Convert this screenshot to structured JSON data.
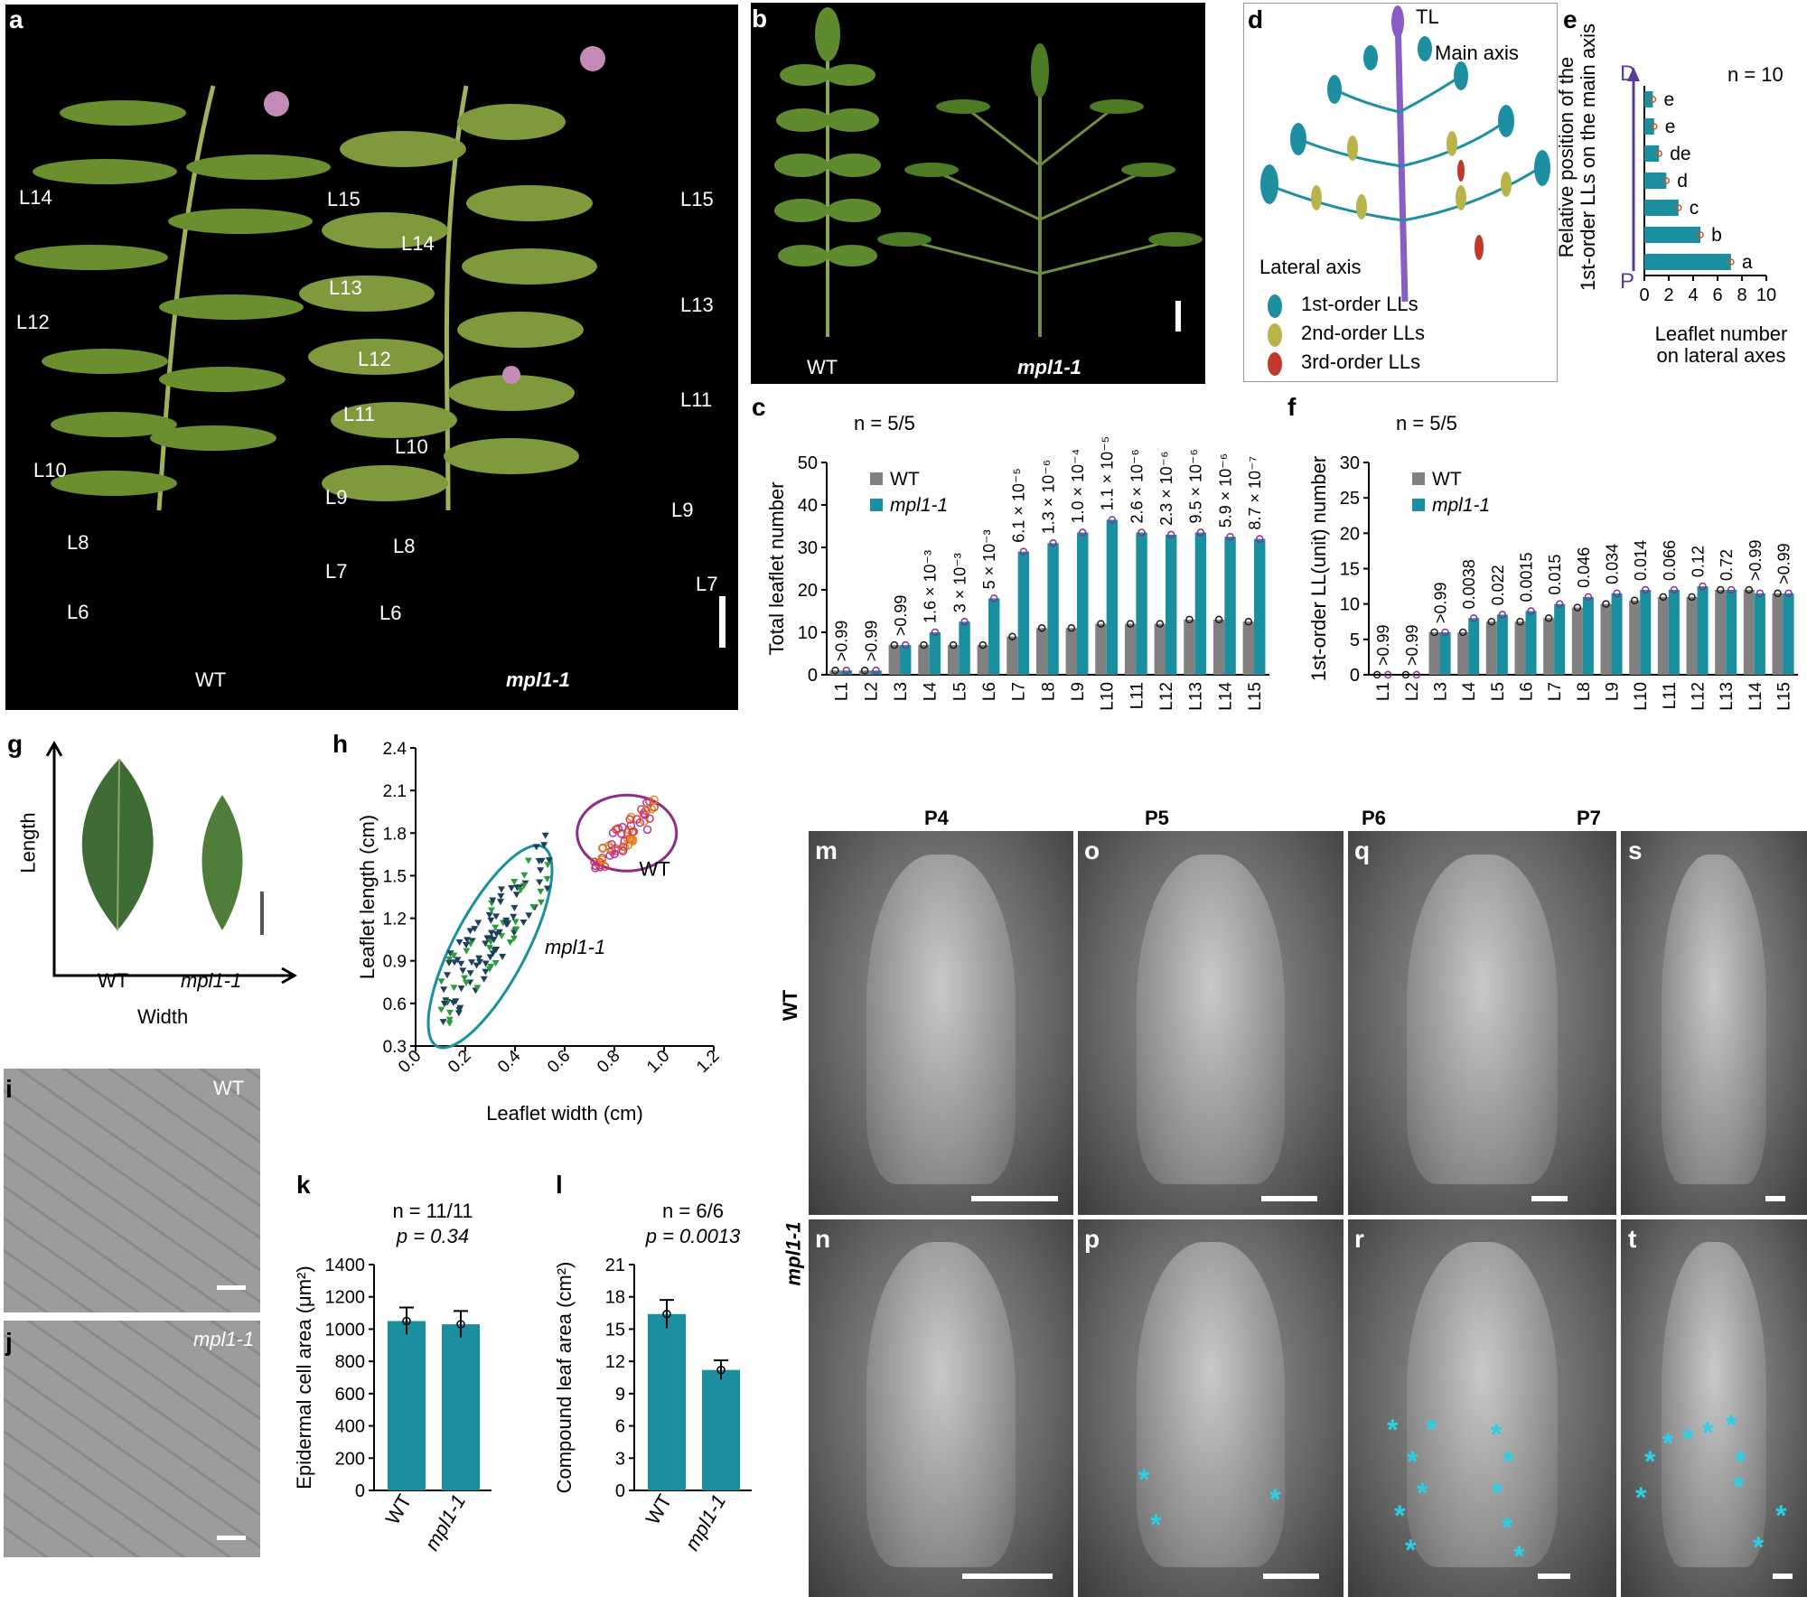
{
  "panel_letters": {
    "a": "a",
    "b": "b",
    "c": "c",
    "d": "d",
    "e": "e",
    "f": "f",
    "g": "g",
    "h": "h",
    "i": "i",
    "j": "j",
    "k": "k",
    "l": "l",
    "m": "m",
    "n": "n",
    "o": "o",
    "p": "p",
    "q": "q",
    "r": "r",
    "s": "s",
    "t": "t"
  },
  "panel_a": {
    "wt_label": "WT",
    "mutant_label": "mpl1-1",
    "wt_leaves": [
      "L14",
      "L15",
      "L13",
      "L12",
      "L11",
      "L10",
      "L9",
      "L8",
      "L7",
      "L6"
    ],
    "mut_leaves": [
      "L15",
      "L14",
      "L13",
      "L12",
      "L11",
      "L10",
      "L9",
      "L8",
      "L7",
      "L6"
    ]
  },
  "panel_b": {
    "wt_label": "WT",
    "mutant_label": "mpl1-1"
  },
  "panel_d": {
    "tl": "TL",
    "main_axis": "Main axis",
    "lateral_axis": "Lateral axis",
    "legend": [
      {
        "label": "1st-order LLs",
        "color": "#1e8fa0"
      },
      {
        "label": "2nd-order LLs",
        "color": "#b8b44a"
      },
      {
        "label": "3rd-order LLs",
        "color": "#c0392b"
      }
    ]
  },
  "panel_e": {
    "n": "n = 10",
    "top": "D",
    "bottom": "P",
    "ylabel_1": "Relative position of the",
    "ylabel_2": "1st-order LLs on the main axis",
    "xlabel_1": "Leaflet number",
    "xlabel_2": "on lateral axes",
    "xticks": [
      "0",
      "2",
      "4",
      "6",
      "8",
      "10"
    ]
  },
  "panel_g": {
    "ylabel": "Length",
    "xlabel": "Width",
    "wt": "WT",
    "mut": "mpl1-1"
  },
  "panel_h": {
    "xlabel": "Leaflet width (cm)",
    "ylabel": "Leaflet length (cm)",
    "xticks": [
      "0.0",
      "0.2",
      "0.4",
      "0.6",
      "0.8",
      "1.0",
      "1.2"
    ],
    "yticks": [
      "0.3",
      "0.6",
      "0.9",
      "1.2",
      "1.5",
      "1.8",
      "2.1",
      "2.4"
    ],
    "wt": "WT",
    "mut": "mpl1-1"
  },
  "panel_ij": {
    "wt": "WT",
    "mut": "mpl1-1"
  },
  "sem": {
    "cols": [
      "P4",
      "P5",
      "P6",
      "P7"
    ],
    "row_wt": "WT",
    "row_mut": "mpl1-1",
    "letters_top": [
      "m",
      "o",
      "q",
      "s"
    ],
    "letters_bottom": [
      "n",
      "p",
      "r",
      "t"
    ]
  },
  "colors": {
    "wt": "#808080",
    "mut": "#1a8fa0",
    "wt_dot": "#1a1a1a",
    "mut_dot": "#8e2c8a"
  },
  "chart_data": [
    {
      "id": "c",
      "type": "bar",
      "n_text": "n = 5/5",
      "ylabel": "Total leaflet number",
      "ylim": [
        0,
        50
      ],
      "yticks": [
        0,
        10,
        20,
        30,
        40,
        50
      ],
      "categories": [
        "L1",
        "L2",
        "L3",
        "L4",
        "L5",
        "L6",
        "L7",
        "L8",
        "L9",
        "L10",
        "L11",
        "L12",
        "L13",
        "L14",
        "L15"
      ],
      "series": [
        {
          "name": "WT",
          "values": [
            1,
            1,
            7,
            7,
            7,
            7,
            9,
            11,
            11,
            12,
            12,
            12,
            13,
            13,
            12.5
          ]
        },
        {
          "name": "mpl1-1",
          "values": [
            1,
            1,
            7,
            10,
            12.5,
            18,
            29,
            31,
            33.5,
            36.5,
            33.5,
            33,
            33.5,
            32.5,
            32
          ]
        }
      ],
      "pvalues": [
        ">0.99",
        ">0.99",
        ">0.99",
        "1.6 × 10⁻³",
        "3 × 10⁻³",
        "5 × 10⁻³",
        "6.1 × 10⁻⁵",
        "1.3 × 10⁻⁶",
        "1.0 × 10⁻⁴",
        "1.1 × 10⁻⁵",
        "2.6 × 10⁻⁶",
        "2.3 × 10⁻⁶",
        "9.5 × 10⁻⁶",
        "5.9 × 10⁻⁶",
        "8.7 × 10⁻⁷"
      ]
    },
    {
      "id": "f",
      "type": "bar",
      "n_text": "n = 5/5",
      "ylabel": "1st-order LL(unit) number",
      "ylim": [
        0,
        30
      ],
      "yticks": [
        0,
        5,
        10,
        15,
        20,
        25,
        30
      ],
      "categories": [
        "L1",
        "L2",
        "L3",
        "L4",
        "L5",
        "L6",
        "L7",
        "L8",
        "L9",
        "L10",
        "L11",
        "L12",
        "L13",
        "L14",
        "L15"
      ],
      "series": [
        {
          "name": "WT",
          "values": [
            0,
            0,
            6,
            6,
            7.5,
            7.5,
            8,
            9.5,
            10,
            10.5,
            11,
            11,
            12,
            12,
            11.5
          ]
        },
        {
          "name": "mpl1-1",
          "values": [
            0,
            0,
            6,
            8,
            8.5,
            9,
            10,
            11,
            11.5,
            12,
            12,
            12.5,
            12,
            11.5,
            11.5
          ]
        }
      ],
      "pvalues": [
        ">0.99",
        ">0.99",
        ">0.99",
        "0.0038",
        "0.022",
        "0.0015",
        "0.015",
        "0.046",
        "0.034",
        "0.014",
        "0.066",
        "0.12",
        "0.72",
        ">0.99",
        ">0.99"
      ]
    },
    {
      "id": "e",
      "type": "bar",
      "orientation": "horizontal",
      "xlim": [
        0,
        10
      ],
      "positions": [
        "1",
        "2",
        "3",
        "4",
        "5",
        "6",
        "7"
      ],
      "values": [
        0.7,
        0.8,
        1.2,
        1.8,
        2.8,
        4.6,
        7.1
      ],
      "letters": [
        "e",
        "e",
        "de",
        "d",
        "c",
        "b",
        "a"
      ]
    },
    {
      "id": "k",
      "type": "bar",
      "n_text": "n = 11/11",
      "p_text": "p = 0.34",
      "ylabel": "Epidermal cell area (μm²)",
      "ylim": [
        0,
        1400
      ],
      "yticks": [
        0,
        200,
        400,
        600,
        800,
        1000,
        1200,
        1400
      ],
      "categories": [
        "WT",
        "mpl1-1"
      ],
      "values": [
        1050,
        1030
      ]
    },
    {
      "id": "l",
      "type": "bar",
      "n_text": "n = 6/6",
      "p_text": "p = 0.0013",
      "ylabel": "Compound leaf area (cm²)",
      "ylim": [
        0,
        21
      ],
      "yticks": [
        0,
        3,
        6,
        9,
        12,
        15,
        18,
        21
      ],
      "categories": [
        "WT",
        "mpl1-1"
      ],
      "values": [
        16.4,
        11.2
      ]
    }
  ]
}
